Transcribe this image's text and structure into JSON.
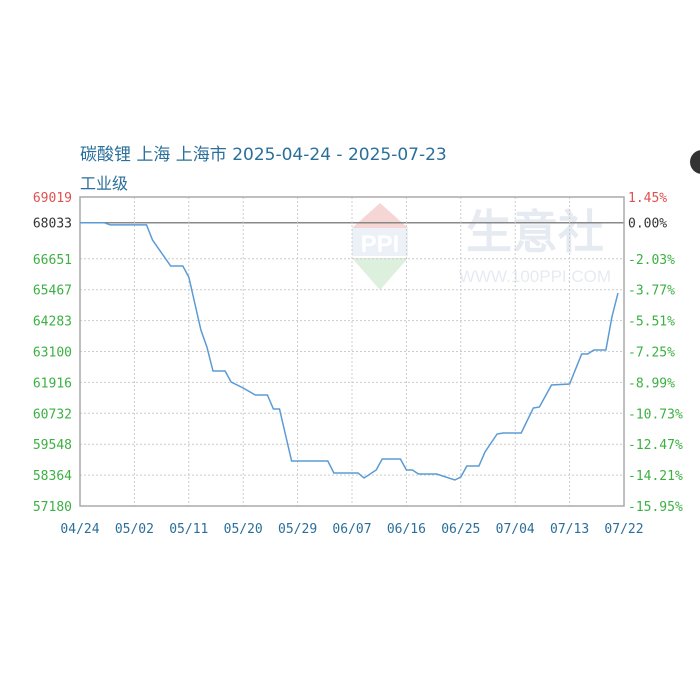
{
  "chart_data": {
    "type": "line",
    "title": "碳酸锂 上海 上海市 2025-04-24 - 2025-07-23",
    "subtitle": "工业级",
    "xlabel": "",
    "ylabel": "",
    "x_range": [
      "2025-04-24",
      "2025-07-23"
    ],
    "ylim": [
      57180,
      69019
    ],
    "grid": true,
    "x_tick_labels": [
      "04/24",
      "05/02",
      "05/11",
      "05/20",
      "05/29",
      "06/07",
      "06/16",
      "06/25",
      "07/04",
      "07/13",
      "07/22"
    ],
    "y_ticks_left": [
      69019,
      68033,
      66651,
      65467,
      64283,
      63100,
      61916,
      60732,
      59548,
      58364,
      57180
    ],
    "y_ticks_right": [
      "1.45%",
      "0.00%",
      "-2.03%",
      "-3.77%",
      "-5.51%",
      "-7.25%",
      "-8.99%",
      "-10.73%",
      "-12.47%",
      "-14.21%",
      "-15.95%"
    ],
    "series": [
      {
        "color": "#5b9bd5",
        "points": [
          [
            "2025-04-24",
            68033
          ],
          [
            "2025-04-28",
            68033
          ],
          [
            "2025-04-29",
            67950
          ],
          [
            "2025-05-05",
            67950
          ],
          [
            "2025-05-06",
            67372
          ],
          [
            "2025-05-09",
            66376
          ],
          [
            "2025-05-11",
            66376
          ],
          [
            "2025-05-12",
            65954
          ],
          [
            "2025-05-14",
            63924
          ],
          [
            "2025-05-15",
            63272
          ],
          [
            "2025-05-16",
            62352
          ],
          [
            "2025-05-18",
            62352
          ],
          [
            "2025-05-19",
            61931
          ],
          [
            "2025-05-21",
            61701
          ],
          [
            "2025-05-23",
            61433
          ],
          [
            "2025-05-25",
            61433
          ],
          [
            "2025-05-26",
            60896
          ],
          [
            "2025-05-27",
            60896
          ],
          [
            "2025-05-29",
            58904
          ],
          [
            "2025-06-04",
            58904
          ],
          [
            "2025-06-05",
            58444
          ],
          [
            "2025-06-09",
            58444
          ],
          [
            "2025-06-10",
            58253
          ],
          [
            "2025-06-12",
            58559
          ],
          [
            "2025-06-13",
            58981
          ],
          [
            "2025-06-16",
            58981
          ],
          [
            "2025-06-17",
            58559
          ],
          [
            "2025-06-18",
            58559
          ],
          [
            "2025-06-19",
            58406
          ],
          [
            "2025-06-22",
            58406
          ],
          [
            "2025-06-25",
            58176
          ],
          [
            "2025-06-26",
            58291
          ],
          [
            "2025-06-27",
            58713
          ],
          [
            "2025-06-29",
            58713
          ],
          [
            "2025-06-30",
            59249
          ],
          [
            "2025-07-02",
            59939
          ],
          [
            "2025-07-03",
            59977
          ],
          [
            "2025-07-06",
            59977
          ],
          [
            "2025-07-08",
            60935
          ],
          [
            "2025-07-09",
            60973
          ],
          [
            "2025-07-11",
            61816
          ],
          [
            "2025-07-14",
            61854
          ],
          [
            "2025-07-16",
            63004
          ],
          [
            "2025-07-17",
            63004
          ],
          [
            "2025-07-18",
            63157
          ],
          [
            "2025-07-20",
            63157
          ],
          [
            "2025-07-21",
            64421
          ],
          [
            "2025-07-22",
            65341
          ]
        ]
      }
    ],
    "colors": {
      "left_axis_top": "#e05050",
      "left_axis_ref": "#333333",
      "left_axis": "#3cb043",
      "right_axis_top": "#e05050",
      "right_axis_ref": "#333333",
      "right_axis": "#3cb043",
      "x_axis": "#2a6f9a"
    }
  },
  "watermark": {
    "brand": "生意社",
    "logo": "PPI",
    "url": "WWW.100PPI.COM"
  }
}
